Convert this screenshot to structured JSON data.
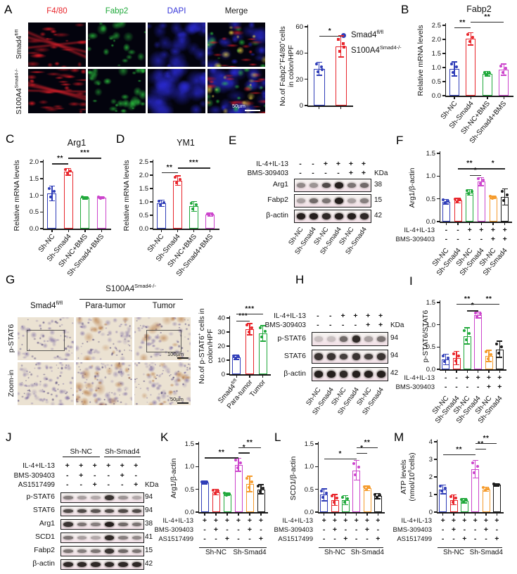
{
  "colors": {
    "blue": "#2f3db8",
    "red": "#e8252b",
    "green": "#1fa83a",
    "magenta": "#cc44cc",
    "orange": "#f59b2c",
    "black": "#1a1a1a"
  },
  "panel_labels": {
    "A": "A",
    "B": "B",
    "C": "C",
    "D": "D",
    "E": "E",
    "F": "F",
    "G": "G",
    "H": "H",
    "I": "I",
    "J": "J",
    "K": "K",
    "L": "L",
    "M": "M"
  },
  "panels": {
    "A": {
      "columns": [
        {
          "label": "F4/80",
          "color": "#e8252b"
        },
        {
          "label": "Fabp2",
          "color": "#1fa83a"
        },
        {
          "label": "DAPI",
          "color": "#3535d8"
        },
        {
          "label": "Merge",
          "color": "#1a1a1a"
        }
      ],
      "row_labels": [
        "Smad4^{fl/fl}",
        "S100A4^{Smad4-/-}"
      ],
      "scale_bar": "50µm",
      "legend": [
        {
          "label": "Smad4^{fl/fl}",
          "color": "#2f3db8",
          "marker": "circle"
        },
        {
          "label": "S100A4^{Smad4-/-}",
          "color": "#e8252b",
          "marker": "square"
        }
      ]
    },
    "G": {
      "group_header": "S100A4^{Smad4-/-}",
      "col_labels": [
        "Smad4^{fl/fl}",
        "Para-tumor",
        "Tumor"
      ],
      "row_labels": [
        "p-STAT6",
        "Zoom-in"
      ],
      "scale_bar_top": "100µm",
      "scale_bar_bottom": "50µm"
    }
  },
  "chart_data": [
    {
      "panel": "A",
      "type": "bar",
      "title": "",
      "ylabel": "No.of Fabp2^{+}F4/80^{+}cells\nin colon/HPF",
      "ylim": [
        0,
        60
      ],
      "yticks": [
        "0",
        "20",
        "40",
        "60"
      ],
      "categories": [
        "Smad4^{fl/fl}",
        "S100A4^{Smad4-/-}"
      ],
      "values": [
        28,
        45
      ],
      "errors": [
        5,
        8
      ],
      "colors": [
        "#2f3db8",
        "#e8252b"
      ],
      "markers": [
        "circle",
        "square"
      ],
      "points": 4,
      "xlabels": false,
      "sig": [
        {
          "a": 0,
          "b": 1,
          "y": 53,
          "label": "*"
        }
      ]
    },
    {
      "panel": "B",
      "type": "bar",
      "title": "Fabp2",
      "ylabel": "Relative mRNA levels",
      "ylim": [
        0,
        2.5
      ],
      "yticks": [
        "0.0",
        "0.5",
        "1.0",
        "1.5",
        "2.0",
        "2.5"
      ],
      "categories": [
        "Sh-NC",
        "Sh-Smad4",
        "Sh-NC+BMS",
        "Sh-Smad4+BMS"
      ],
      "values": [
        0.95,
        2.02,
        0.78,
        0.92
      ],
      "errors": [
        0.25,
        0.22,
        0.08,
        0.2
      ],
      "colors": [
        "#2f3db8",
        "#e8252b",
        "#1fa83a",
        "#cc44cc"
      ],
      "sig": [
        {
          "a": 0,
          "b": 1,
          "y": 2.42,
          "label": "**"
        },
        {
          "a": 1,
          "b": 3,
          "y": 2.62,
          "label": "**"
        }
      ]
    },
    {
      "panel": "C",
      "type": "bar",
      "title": "Arg1",
      "ylabel": "Relative mRNA levels",
      "ylim": [
        0,
        2.0
      ],
      "yticks": [
        "0.0",
        "0.5",
        "1.0",
        "1.5",
        "2.0"
      ],
      "categories": [
        "Sh-NC",
        "Sh-Smad4",
        "Sh-NC+BMS",
        "Sh-Smad4+BMS"
      ],
      "values": [
        1.05,
        1.7,
        0.92,
        0.92
      ],
      "errors": [
        0.22,
        0.1,
        0.04,
        0.03
      ],
      "colors": [
        "#2f3db8",
        "#e8252b",
        "#1fa83a",
        "#cc44cc"
      ],
      "sig": [
        {
          "a": 0,
          "b": 1,
          "y": 1.95,
          "label": "**"
        },
        {
          "a": 1,
          "b": 3,
          "y": 2.12,
          "label": "***"
        }
      ]
    },
    {
      "panel": "D",
      "type": "bar",
      "title": "YM1",
      "ylabel": "Relative mRNA levels",
      "ylim": [
        0,
        2.5
      ],
      "yticks": [
        "0.0",
        "0.5",
        "1.0",
        "1.5",
        "2.0",
        "2.5"
      ],
      "categories": [
        "Sh-NC",
        "Sh-Smad4",
        "Sh-NC+BMS",
        "Sh-Smad4+BMS"
      ],
      "values": [
        0.95,
        1.8,
        0.83,
        0.52
      ],
      "errors": [
        0.12,
        0.18,
        0.18,
        0.06
      ],
      "colors": [
        "#2f3db8",
        "#e8252b",
        "#1fa83a",
        "#cc44cc"
      ],
      "sig": [
        {
          "a": 0,
          "b": 1,
          "y": 2.1,
          "label": "**"
        },
        {
          "a": 1,
          "b": 3,
          "y": 2.28,
          "label": "***"
        }
      ]
    },
    {
      "panel": "F",
      "type": "bar",
      "title": "",
      "ylabel": "Arg1/β-actin",
      "ylim": [
        0,
        1.5
      ],
      "yticks": [
        "0.0",
        "0.5",
        "1.0",
        "1.5"
      ],
      "categories": [
        "Sh-NC",
        "Sh-Smad4",
        "Sh-NC",
        "Sh-Smad4",
        "Sh-NC",
        "Sh-Smad4"
      ],
      "xlabels": false,
      "values": [
        0.44,
        0.46,
        0.64,
        0.88,
        0.53,
        0.54
      ],
      "errors": [
        0.05,
        0.05,
        0.06,
        0.09,
        0.03,
        0.18
      ],
      "colors": [
        "#2f3db8",
        "#e8252b",
        "#1fa83a",
        "#cc44cc",
        "#f59b2c",
        "#1a1a1a"
      ],
      "sig": [
        {
          "a": 1,
          "b": 3,
          "y": 1.17,
          "label": "**"
        },
        {
          "a": 2,
          "b": 3,
          "y": 1.02,
          "label": "*"
        },
        {
          "a": 3,
          "b": 5,
          "y": 1.17,
          "label": "*"
        }
      ],
      "matrix": [
        {
          "label": "IL-4+IL-13",
          "symbols": [
            "-",
            "-",
            "+",
            "+",
            "+",
            "+"
          ]
        },
        {
          "label": "BMS-309403",
          "symbols": [
            "-",
            "-",
            "-",
            "-",
            "+",
            "+"
          ]
        }
      ],
      "lanes": [
        "Sh-NC",
        "Sh-Smad4",
        "Sh-NC",
        "Sh-Smad4",
        "Sh-NC",
        "Sh-Smad4"
      ]
    },
    {
      "panel": "G",
      "type": "bar",
      "title": "",
      "ylabel": "No.of p-STAT6^{+} cells in\ncolon/HPF",
      "ylim": [
        0,
        40
      ],
      "yticks": [
        "0",
        "10",
        "20",
        "30",
        "40"
      ],
      "categories": [
        "Smad4^{fl/fl}",
        "Para-tumor",
        "Tumor"
      ],
      "values": [
        12,
        32,
        29
      ],
      "errors": [
        1.5,
        4,
        5.5
      ],
      "colors": [
        "#2f3db8",
        "#e8252b",
        "#1fa83a"
      ],
      "sig": [
        {
          "a": 0,
          "b": 1,
          "y": 38,
          "label": "***"
        },
        {
          "a": 0,
          "b": 2,
          "y": 43,
          "label": "***"
        }
      ]
    },
    {
      "panel": "I",
      "type": "bar",
      "title": "",
      "ylabel": "p-STAT6/STAT6",
      "ylim": [
        0,
        1.5
      ],
      "yticks": [
        "0.0",
        "0.5",
        "1.0",
        "1.5"
      ],
      "categories": [
        "Sh-NC",
        "Sh-Smad4",
        "Sh-NC",
        "Sh-Smad4",
        "Sh-NC",
        "Sh-Smad4"
      ],
      "xlabels": false,
      "values": [
        0.22,
        0.25,
        0.75,
        1.22,
        0.3,
        0.45
      ],
      "errors": [
        0.12,
        0.15,
        0.18,
        0.07,
        0.13,
        0.18
      ],
      "colors": [
        "#2f3db8",
        "#e8252b",
        "#1fa83a",
        "#cc44cc",
        "#f59b2c",
        "#1a1a1a"
      ],
      "sig": [
        {
          "a": 1,
          "b": 3,
          "y": 1.47,
          "label": "**"
        },
        {
          "a": 2,
          "b": 3,
          "y": 1.32,
          "label": "*"
        },
        {
          "a": 3,
          "b": 5,
          "y": 1.47,
          "label": "**"
        }
      ],
      "matrix": [
        {
          "label": "IL-4+IL-13",
          "symbols": [
            "-",
            "-",
            "+",
            "+",
            "+",
            "+"
          ]
        },
        {
          "label": "BMS-309403",
          "symbols": [
            "-",
            "-",
            "-",
            "-",
            "+",
            "+"
          ]
        }
      ],
      "lanes": [
        "Sh-NC",
        "Sh-Smad4",
        "Sh-NC",
        "Sh-Smad4",
        "Sh-NC",
        "Sh-Smad4"
      ]
    },
    {
      "panel": "K",
      "type": "bar",
      "title": "",
      "ylabel": "Arg1/β-actin",
      "ylim": [
        0,
        1.5
      ],
      "yticks": [
        "0.0",
        "0.5",
        "1.0",
        "1.5"
      ],
      "categories": [
        "Sh-NC",
        "Sh-Smad4"
      ],
      "xlabels": false,
      "values": [
        0.65,
        0.44,
        0.39,
        1.04,
        0.62,
        0.5
      ],
      "errors": [
        0.03,
        0.06,
        0.03,
        0.14,
        0.17,
        0.1
      ],
      "colors": [
        "#2f3db8",
        "#e8252b",
        "#1fa83a",
        "#cc44cc",
        "#f59b2c",
        "#1a1a1a"
      ],
      "sig": [
        {
          "a": 0,
          "b": 3,
          "y": 1.2,
          "label": "**"
        },
        {
          "a": 3,
          "b": 4,
          "y": 1.31,
          "label": "*"
        },
        {
          "a": 3,
          "b": 5,
          "y": 1.43,
          "label": "**"
        }
      ],
      "matrix": [
        {
          "label": "IL-4+IL-13",
          "symbols": [
            "+",
            "+",
            "+",
            "+",
            "+",
            "+"
          ]
        },
        {
          "label": "BMS-309403",
          "symbols": [
            "-",
            "+",
            "-",
            "-",
            "+",
            "-"
          ]
        },
        {
          "label": "AS1517499",
          "symbols": [
            "-",
            "-",
            "+",
            "-",
            "-",
            "+"
          ]
        }
      ],
      "groups": [
        {
          "label": "Sh-NC",
          "from": 0,
          "to": 2
        },
        {
          "label": "Sh-Smad4",
          "from": 3,
          "to": 5
        }
      ]
    },
    {
      "panel": "L",
      "type": "bar",
      "title": "",
      "ylabel": "SCD1/β-actin",
      "ylim": [
        0,
        1.5
      ],
      "yticks": [
        "0.0",
        "0.5",
        "1.0",
        "1.5"
      ],
      "categories": [
        "Sh-NC",
        "Sh-Smad4"
      ],
      "xlabels": false,
      "values": [
        0.38,
        0.27,
        0.26,
        0.92,
        0.52,
        0.35
      ],
      "errors": [
        0.13,
        0.12,
        0.1,
        0.22,
        0.05,
        0.06
      ],
      "colors": [
        "#2f3db8",
        "#e8252b",
        "#1fa83a",
        "#cc44cc",
        "#f59b2c",
        "#1a1a1a"
      ],
      "sig": [
        {
          "a": 0,
          "b": 3,
          "y": 1.18,
          "label": "*"
        },
        {
          "a": 3,
          "b": 4,
          "y": 1.3,
          "label": "*"
        },
        {
          "a": 3,
          "b": 5,
          "y": 1.42,
          "label": "**"
        }
      ],
      "matrix": [
        {
          "label": "IL-4+IL-13",
          "symbols": [
            "+",
            "+",
            "+",
            "+",
            "+",
            "+"
          ]
        },
        {
          "label": "BMS-309403",
          "symbols": [
            "-",
            "+",
            "-",
            "-",
            "+",
            "-"
          ]
        },
        {
          "label": "AS1517499",
          "symbols": [
            "-",
            "-",
            "+",
            "-",
            "-",
            "+"
          ]
        }
      ],
      "groups": [
        {
          "label": "Sh-NC",
          "from": 0,
          "to": 2
        },
        {
          "label": "Sh-Smad4",
          "from": 3,
          "to": 5
        }
      ]
    },
    {
      "panel": "M",
      "type": "bar",
      "title": "",
      "ylabel": "ATP levels\n(nmol/10^{6}cells)",
      "ylim": [
        0,
        4
      ],
      "yticks": [
        "0",
        "1",
        "2",
        "3",
        "4"
      ],
      "categories": [
        "Sh-NC",
        "Sh-Smad4"
      ],
      "xlabels": false,
      "values": [
        1.3,
        0.7,
        0.65,
        2.45,
        1.3,
        1.55
      ],
      "errors": [
        0.25,
        0.28,
        0.12,
        0.5,
        0.12,
        0.07
      ],
      "colors": [
        "#2f3db8",
        "#e8252b",
        "#1fa83a",
        "#cc44cc",
        "#f59b2c",
        "#1a1a1a"
      ],
      "sig": [
        {
          "a": 0,
          "b": 3,
          "y": 3.3,
          "label": "**"
        },
        {
          "a": 3,
          "b": 4,
          "y": 3.62,
          "label": "**"
        },
        {
          "a": 3,
          "b": 5,
          "y": 3.92,
          "label": "**"
        }
      ],
      "matrix": [
        {
          "label": "IL-4+IL-13",
          "symbols": [
            "+",
            "+",
            "+",
            "+",
            "+",
            "+"
          ]
        },
        {
          "label": "BMS-309403",
          "symbols": [
            "-",
            "+",
            "-",
            "-",
            "+",
            "-"
          ]
        },
        {
          "label": "AS1517499",
          "symbols": [
            "-",
            "-",
            "+",
            "-",
            "-",
            "+"
          ]
        }
      ],
      "groups": [
        {
          "label": "Sh-NC",
          "from": 0,
          "to": 2
        },
        {
          "label": "Sh-Smad4",
          "from": 3,
          "to": 5
        }
      ]
    }
  ],
  "blots": [
    {
      "panel": "E",
      "matrix": [
        {
          "label": "IL-4+IL-13",
          "symbols": [
            "-",
            "-",
            "+",
            "+",
            "+",
            "+"
          ]
        },
        {
          "label": "BMS-309403",
          "symbols": [
            "-",
            "-",
            "-",
            "-",
            "+",
            "+"
          ],
          "suffix": "KDa"
        }
      ],
      "bands": [
        {
          "label": "Arg1",
          "kda": "38",
          "ints": [
            0.45,
            0.4,
            0.75,
            0.95,
            0.55,
            0.6
          ]
        },
        {
          "label": "Fabp2",
          "kda": "15",
          "ints": [
            0.35,
            0.6,
            0.55,
            0.95,
            0.35,
            0.5
          ]
        },
        {
          "label": "β-actin",
          "kda": "42",
          "ints": [
            0.95,
            0.95,
            0.9,
            0.95,
            0.95,
            0.9
          ]
        }
      ],
      "lanes": [
        "Sh-NC",
        "Sh-Smad4",
        "Sh-NC",
        "Sh-Smad4",
        "Sh-NC",
        "Sh-Smad4"
      ]
    },
    {
      "panel": "H",
      "matrix": [
        {
          "label": "IL-4+IL-13",
          "symbols": [
            "-",
            "-",
            "+",
            "+",
            "+",
            "+"
          ]
        },
        {
          "label": "BMS-309403",
          "symbols": [
            "-",
            "-",
            "-",
            "-",
            "+",
            "+"
          ],
          "suffix": "KDa"
        }
      ],
      "bands": [
        {
          "label": "p-STAT6",
          "kda": "94",
          "ints": [
            0.2,
            0.2,
            0.6,
            0.9,
            0.35,
            0.55
          ]
        },
        {
          "label": "STAT6",
          "kda": "94",
          "ints": [
            0.85,
            0.85,
            0.8,
            0.85,
            0.8,
            0.85
          ]
        },
        {
          "label": "β-actin",
          "kda": "42",
          "ints": [
            0.95,
            0.95,
            0.9,
            0.95,
            0.95,
            0.95
          ]
        }
      ],
      "lanes": [
        "Sh-NC",
        "Sh-Smad4",
        "Sh-NC",
        "Sh-Smad4",
        "Sh-NC",
        "Sh-Smad4"
      ]
    },
    {
      "panel": "J",
      "groups": [
        {
          "label": "Sh-NC",
          "from": 0,
          "to": 2
        },
        {
          "label": "Sh-Smad4",
          "from": 3,
          "to": 5
        }
      ],
      "matrix": [
        {
          "label": "IL-4+IL-13",
          "symbols": [
            "+",
            "+",
            "+",
            "+",
            "+",
            "+"
          ]
        },
        {
          "label": "BMS-309403",
          "symbols": [
            "-",
            "+",
            "-",
            "-",
            "+",
            "-"
          ]
        },
        {
          "label": "AS1517499",
          "symbols": [
            "-",
            "-",
            "+",
            "-",
            "-",
            "+"
          ],
          "suffix": "KDa"
        }
      ],
      "bands": [
        {
          "label": "p-STAT6",
          "kda": "94",
          "ints": [
            0.5,
            0.35,
            0.3,
            0.85,
            0.4,
            0.3
          ]
        },
        {
          "label": "STAT6",
          "kda": "94",
          "ints": [
            0.75,
            0.75,
            0.7,
            0.75,
            0.75,
            0.75
          ]
        },
        {
          "label": "Arg1",
          "kda": "38",
          "ints": [
            0.85,
            0.55,
            0.5,
            0.95,
            0.6,
            0.55
          ]
        },
        {
          "label": "SCD1",
          "kda": "41",
          "ints": [
            0.55,
            0.35,
            0.3,
            0.9,
            0.5,
            0.45
          ]
        },
        {
          "label": "Fabp2",
          "kda": "15",
          "ints": [
            0.55,
            0.5,
            0.55,
            0.85,
            0.6,
            0.55
          ]
        },
        {
          "label": "β-actin",
          "kda": "42",
          "ints": [
            0.9,
            0.9,
            0.9,
            0.9,
            0.9,
            0.9
          ]
        }
      ]
    }
  ]
}
